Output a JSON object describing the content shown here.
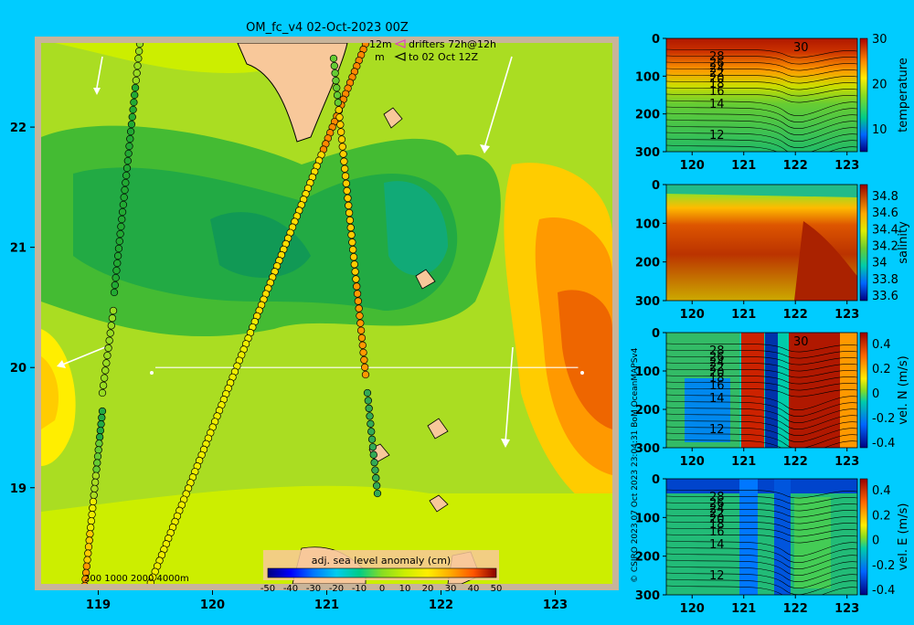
{
  "title": "OM_fc_v4  02-Oct-2023 00Z",
  "legend": {
    "depth_12": "12m",
    "depth_m": "m",
    "drifters": "drifters 72h@12h",
    "forecast_to": "to 02 Oct 12Z"
  },
  "copyright": "© CSIRO 2023   07 Oct 2023 23:04:31 BoM OceanMAPSv4",
  "bathy_text": "200  1000  2000  4000m",
  "colors": {
    "background": "#00ccff",
    "frame": "#c8b49a",
    "land": "#f8c89a",
    "sla_cmap": [
      "#000080",
      "#0000ff",
      "#0077ff",
      "#00ccee",
      "#00cc88",
      "#33bb33",
      "#88dd22",
      "#ccee00",
      "#ffee00",
      "#ffaa00",
      "#ff6600",
      "#cc2200",
      "#880000"
    ]
  },
  "chart_data": [
    {
      "type": "heatmap",
      "id": "sla_map",
      "colorbar_label": "adj. sea level anomaly (cm)",
      "colorbar_ticks": [
        "-50",
        "-40",
        "-30",
        "-20",
        "-10",
        "0",
        "10",
        "20",
        "30",
        "40",
        "50"
      ],
      "clim": [
        -50,
        50
      ],
      "xlim": [
        118.5,
        123.5
      ],
      "ylim": [
        18.2,
        22.7
      ],
      "xticks": [
        "119",
        "120",
        "121",
        "122",
        "123"
      ],
      "yticks": [
        "19",
        "20",
        "21",
        "22"
      ],
      "section_lat": 20,
      "section_lon": [
        119.5,
        123.2
      ]
    },
    {
      "type": "heatmap",
      "id": "temperature_section",
      "colorbar_label": "temperature",
      "colorbar_ticks": [
        "10",
        "20",
        "30"
      ],
      "clim": [
        5,
        30
      ],
      "contour_labels": [
        "28",
        "26",
        "24",
        "22",
        "20",
        "18",
        "16",
        "14",
        "12",
        "30"
      ],
      "xticks": [
        "120",
        "121",
        "122",
        "123"
      ],
      "yticks": [
        "0",
        "100",
        "200",
        "300"
      ]
    },
    {
      "type": "heatmap",
      "id": "salinity_section",
      "colorbar_label": "salinity",
      "colorbar_ticks": [
        "34.8",
        "34.6",
        "34.4",
        "34.2",
        "34",
        "33.8",
        "33.6"
      ],
      "clim": [
        33.5,
        34.9
      ],
      "xticks": [
        "120",
        "121",
        "122",
        "123"
      ],
      "yticks": [
        "0",
        "100",
        "200",
        "300"
      ]
    },
    {
      "type": "heatmap",
      "id": "vel_n_section",
      "colorbar_label": "vel. N (m/s)",
      "colorbar_ticks": [
        "0.4",
        "0.2",
        "0",
        "-0.2",
        "-0.4"
      ],
      "clim": [
        -0.5,
        0.5
      ],
      "contour_labels": [
        "28",
        "26",
        "24",
        "22",
        "20",
        "18",
        "16",
        "14",
        "12",
        "30"
      ],
      "xticks": [
        "120",
        "121",
        "122",
        "123"
      ],
      "yticks": [
        "0",
        "100",
        "200",
        "300"
      ]
    },
    {
      "type": "heatmap",
      "id": "vel_e_section",
      "colorbar_label": "vel. E (m/s)",
      "colorbar_ticks": [
        "0.4",
        "0.2",
        "0",
        "-0.2",
        "-0.4"
      ],
      "clim": [
        -0.5,
        0.5
      ],
      "contour_labels": [
        "28",
        "26",
        "24",
        "22",
        "20",
        "18",
        "16",
        "14",
        "12"
      ],
      "xticks": [
        "120",
        "121",
        "122",
        "123"
      ],
      "yticks": [
        "0",
        "100",
        "200",
        "300"
      ]
    }
  ]
}
